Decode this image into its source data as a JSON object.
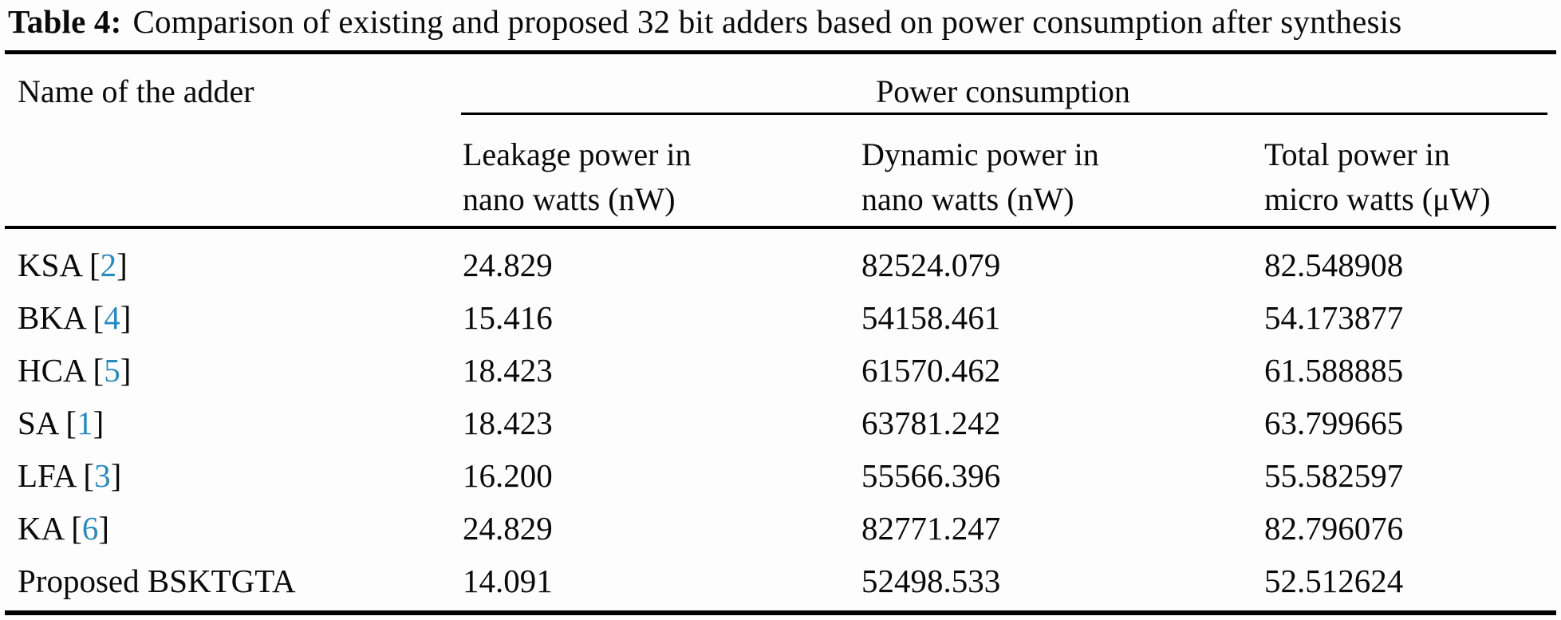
{
  "table": {
    "caption_label": "Table 4:",
    "caption_text": "Comparison of existing and proposed 32 bit adders based on power consumption after synthesis",
    "header": {
      "name_column": "Name of the adder",
      "group_label": "Power consumption",
      "columns": [
        "Leakage power in\nnano watts (nW)",
        "Dynamic power in\nnano watts (nW)",
        "Total power in\nmicro watts (μW)"
      ]
    },
    "rows": [
      {
        "name_pre": "KSA [",
        "ref": "2",
        "name_post": "]",
        "leakage": "24.829",
        "dynamic": "82524.079",
        "total": "82.548908"
      },
      {
        "name_pre": "BKA [",
        "ref": "4",
        "name_post": "]",
        "leakage": "15.416",
        "dynamic": "54158.461",
        "total": "54.173877"
      },
      {
        "name_pre": "HCA [",
        "ref": "5",
        "name_post": "]",
        "leakage": "18.423",
        "dynamic": "61570.462",
        "total": "61.588885"
      },
      {
        "name_pre": "SA [",
        "ref": "1",
        "name_post": "]",
        "leakage": "18.423",
        "dynamic": "63781.242",
        "total": "63.799665"
      },
      {
        "name_pre": "LFA [",
        "ref": "3",
        "name_post": "]",
        "leakage": "16.200",
        "dynamic": "55566.396",
        "total": "55.582597"
      },
      {
        "name_pre": "KA [",
        "ref": "6",
        "name_post": "]",
        "leakage": "24.829",
        "dynamic": "82771.247",
        "total": "82.796076"
      },
      {
        "name_pre": "Proposed BSKTGTA",
        "ref": "",
        "name_post": "",
        "leakage": "14.091",
        "dynamic": "52498.533",
        "total": "52.512624"
      }
    ],
    "colors": {
      "citation_accent": "#2b8abd",
      "text": "#0a0a0a",
      "rule": "#000000",
      "background": "#fdfdfd"
    }
  }
}
